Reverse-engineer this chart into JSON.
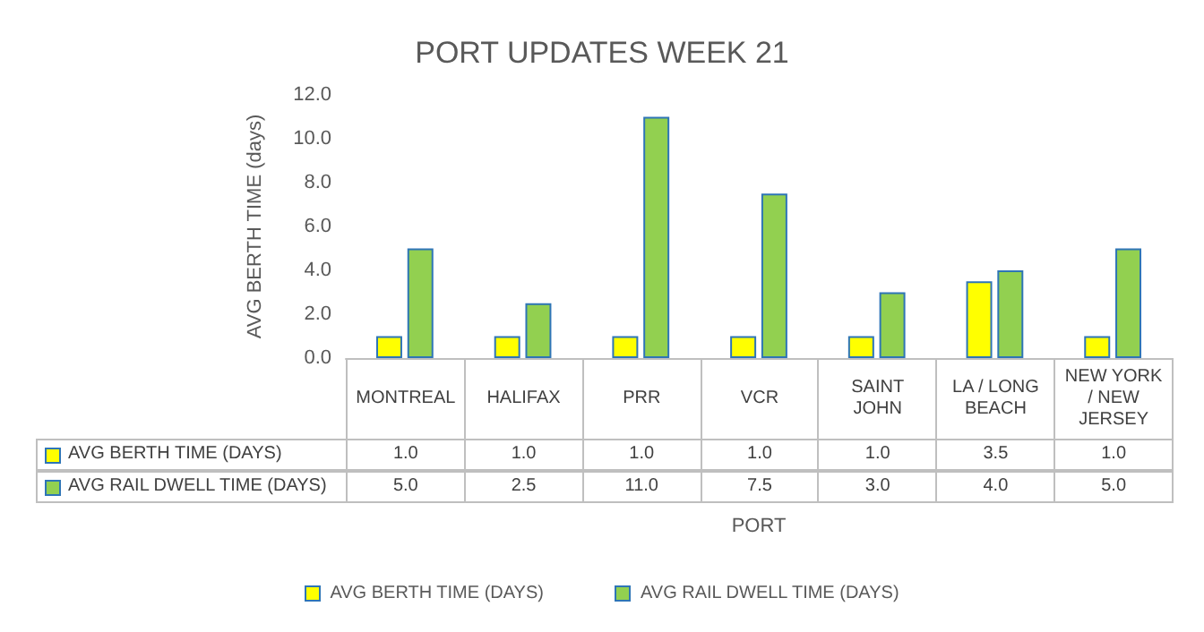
{
  "chart_data": {
    "type": "bar",
    "title": "PORT UPDATES WEEK 21",
    "xlabel": "PORT",
    "ylabel": "AVG BERTH TIME (days)",
    "categories": [
      "MONTREAL",
      "HALIFAX",
      "PRR",
      "VCR",
      "SAINT JOHN",
      "LA / LONG BEACH",
      "NEW YORK / NEW JERSEY"
    ],
    "series": [
      {
        "name": "AVG BERTH TIME (DAYS)",
        "color": "#ffff00",
        "values": [
          1,
          1,
          1,
          1,
          1,
          3.5,
          1
        ],
        "value_labels": [
          "1.0",
          "1.0",
          "1.0",
          "1.0",
          "1.0",
          "3.5",
          "1.0"
        ]
      },
      {
        "name": "AVG RAIL DWELL TIME (DAYS)",
        "color": "#92d050",
        "values": [
          5,
          2.5,
          11,
          7.5,
          3,
          4,
          5
        ],
        "value_labels": [
          "5.0",
          "2.5",
          "11.0",
          "7.5",
          "3.0",
          "4.0",
          "5.0"
        ]
      }
    ],
    "ylim": [
      0,
      12
    ],
    "yticks": [
      {
        "value": 0,
        "label": "0.0"
      },
      {
        "value": 2,
        "label": "2.0"
      },
      {
        "value": 4,
        "label": "4.0"
      },
      {
        "value": 6,
        "label": "6.0"
      },
      {
        "value": 8,
        "label": "8.0"
      },
      {
        "value": 10,
        "label": "10.0"
      },
      {
        "value": 12,
        "label": "12.0"
      }
    ],
    "grid": false,
    "legend": "bottom"
  }
}
